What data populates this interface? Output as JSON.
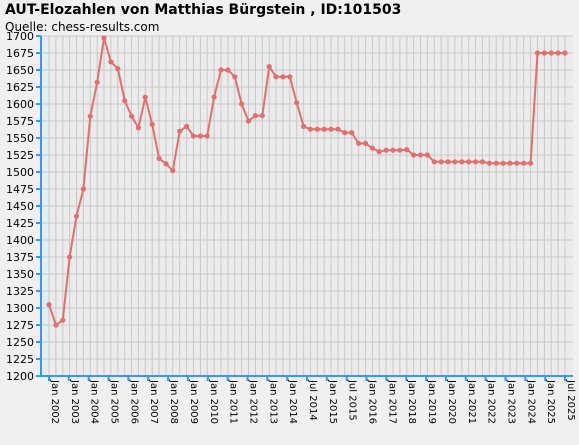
{
  "chart_data": {
    "type": "line",
    "title": "AUT-Elozahlen von Matthias Bürgstein , ID:101503",
    "subtitle": "Quelle: chess-results.com",
    "xlabel": "",
    "ylabel": "",
    "ylim": [
      1200,
      1700
    ],
    "ytick_step": 25,
    "grid": true,
    "y_ticks": [
      "1200",
      "1225",
      "1250",
      "1275",
      "1300",
      "1325",
      "1350",
      "1375",
      "1400",
      "1425",
      "1450",
      "1475",
      "1500",
      "1525",
      "1550",
      "1575",
      "1600",
      "1625",
      "1650",
      "1675",
      "1700"
    ],
    "x_tick_labels": [
      "Jan 2002",
      "Jan 2003",
      "Jan 2004",
      "Jan 2005",
      "Jan 2006",
      "Jan 2007",
      "Jan 2008",
      "Jan 2009",
      "Jan 2010",
      "Jan 2011",
      "Jan 2012",
      "Jan 2013",
      "Jan 2014",
      "Jul 2014",
      "Jan 2015",
      "Jul 2015",
      "Jan 2016",
      "Jan 2017",
      "Jan 2018",
      "Jan 2019",
      "Jan 2020",
      "Jan 2021",
      "Jan 2022",
      "Jan 2023",
      "Jan 2024",
      "Jan 2025",
      "Jul 2025"
    ],
    "series": [
      {
        "color": "#e07070",
        "values": [
          1305,
          1275,
          1282,
          1375,
          1435,
          1475,
          1582,
          1632,
          1697,
          1662,
          1652,
          1605,
          1582,
          1565,
          1610,
          1570,
          1520,
          1512,
          1502,
          1560,
          1567,
          1553,
          1553,
          1553,
          1610,
          1650,
          1650,
          1640,
          1600,
          1575,
          1583,
          1583,
          1655,
          1640,
          1640,
          1640,
          1602,
          1567,
          1563,
          1563,
          1563,
          1563,
          1563,
          1558,
          1558,
          1542,
          1542,
          1535,
          1530,
          1532,
          1532,
          1532,
          1533,
          1525,
          1525,
          1525,
          1515,
          1515,
          1515,
          1515,
          1515,
          1515,
          1515,
          1515,
          1513,
          1513,
          1513,
          1513,
          1513,
          1513,
          1513,
          1675,
          1675,
          1675,
          1675,
          1675
        ]
      }
    ]
  }
}
